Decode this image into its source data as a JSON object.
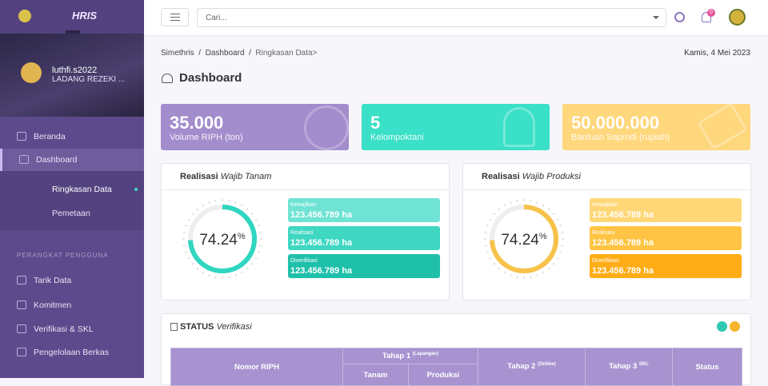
{
  "sidebar": {
    "brand": "HRIS",
    "user": {
      "name": "luthfi.s2022",
      "company": "LADANG REZEKI ..."
    },
    "menu": [
      "Beranda",
      "Dashboard"
    ],
    "submenu": [
      "Ringkasan Data",
      "Pemetaan"
    ],
    "section": "PERANGKAT PENGGUNA",
    "tools": [
      "Tarik Data",
      "Komitmen",
      "Verifikasi & SKL",
      "Pengelolaan Berkas"
    ]
  },
  "topbar": {
    "search_placeholder": "Cari...",
    "notifications": 0
  },
  "breadcrumb": [
    "Simethris",
    "Dashboard",
    "Ringkasan Data>"
  ],
  "date": "Kamis, 4 Mei 2023",
  "page_title": "Dashboard",
  "stats": [
    {
      "value": "35.000",
      "label": "Volume RIPH (ton)"
    },
    {
      "value": "5",
      "label": "Kelompoktani"
    },
    {
      "value": "50.000.000",
      "label": "Bantuan Saprodi (rupiah)"
    }
  ],
  "panels": [
    {
      "title": "Realisasi",
      "subtitle": "Wajib Tanam",
      "gauge": {
        "value": 74.24,
        "unit": "%"
      },
      "items": [
        {
          "label": "Kewajiban",
          "value": "123.456.789 ha"
        },
        {
          "label": "Realisasi",
          "value": "123.456.789 ha"
        },
        {
          "label": "Diverifikasi",
          "value": "123.456.789 ha"
        }
      ]
    },
    {
      "title": "Realisasi",
      "subtitle": "Wajib Produksi",
      "gauge": {
        "value": 74.24,
        "unit": "%"
      },
      "items": [
        {
          "label": "Kewajiban",
          "value": "123.456.789 ha"
        },
        {
          "label": "Realisasi",
          "value": "123.456.789 ha"
        },
        {
          "label": "Diverifikasi",
          "value": "123.456.789 ha"
        }
      ]
    }
  ],
  "status": {
    "title": "STATUS",
    "subtitle": "Verifikasi",
    "table": {
      "nomor": "Nomor RIPH",
      "tahap1": "Tahap 1",
      "tahap1_note": "(Lapangan)",
      "tanam": "Tanam",
      "produksi": "Produksi",
      "tahap2": "Tahap 2",
      "tahap2_note": "(Online)",
      "tahap3": "Tahap 3",
      "tahap3_note": "SKL",
      "status": "Status"
    }
  }
}
